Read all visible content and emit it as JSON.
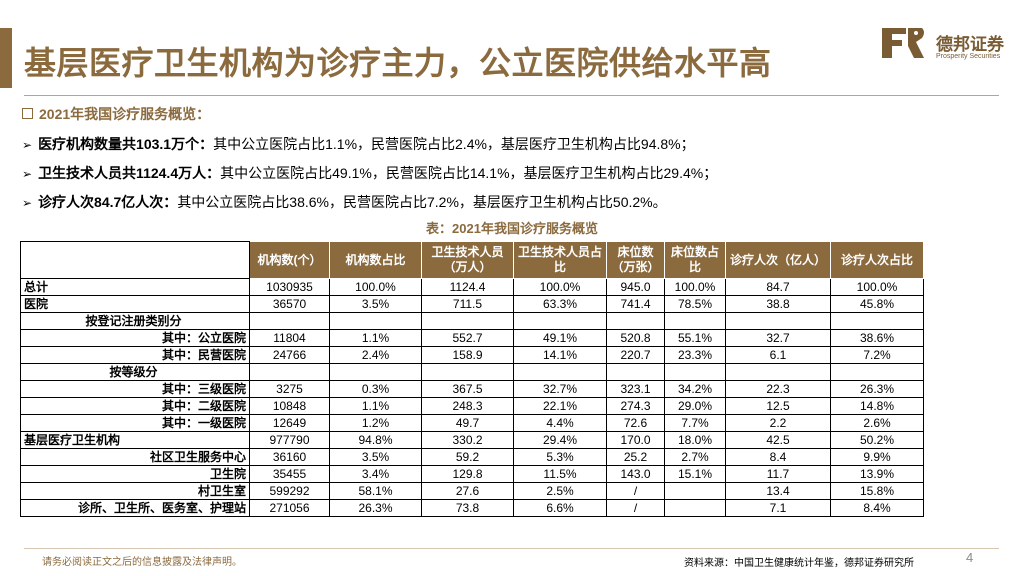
{
  "title": "基层医疗卫生机构为诊疗主力，公立医院供给水平高",
  "logo": {
    "cn": "德邦证券",
    "en": "Prosperity Securities"
  },
  "section_heading": "2021年我国诊疗服务概览：",
  "bullets": [
    {
      "bold": "医疗机构数量共103.1万个：",
      "text": "其中公立医院占比1.1%，民营医院占比2.4%，基层医疗卫生机构占比94.8%；"
    },
    {
      "bold": "卫生技术人员共1124.4万人：",
      "text": "其中公立医院占比49.1%，民营医院占比14.1%，基层医疗卫生机构占比29.4%；"
    },
    {
      "bold": "诊疗人次84.7亿人次：",
      "text": "其中公立医院占比38.6%，民营医院占比7.2%，基层医疗卫生机构占比50.2%。"
    }
  ],
  "table": {
    "caption": "表：2021年我国诊疗服务概览",
    "headers": [
      "机构数(个）",
      "机构数占比",
      "卫生技术人员（万人）",
      "卫生技术人员占比",
      "床位数（万张）",
      "床位数占比",
      "诊疗人次（亿人）",
      "诊疗人次占比"
    ],
    "rows": [
      {
        "label": "总计",
        "cells": [
          "1030935",
          "100.0%",
          "1124.4",
          "100.0%",
          "945.0",
          "100.0%",
          "84.7",
          "100.0%"
        ]
      },
      {
        "label": "医院",
        "cells": [
          "36570",
          "3.5%",
          "711.5",
          "63.3%",
          "741.4",
          "78.5%",
          "38.8",
          "45.8%"
        ]
      },
      {
        "label": "按登记注册类别分",
        "cells": [
          "",
          "",
          "",
          "",
          "",
          "",
          "",
          ""
        ]
      },
      {
        "label": "其中：公立医院",
        "cells": [
          "11804",
          "1.1%",
          "552.7",
          "49.1%",
          "520.8",
          "55.1%",
          "32.7",
          "38.6%"
        ]
      },
      {
        "label": "其中：民营医院",
        "cells": [
          "24766",
          "2.4%",
          "158.9",
          "14.1%",
          "220.7",
          "23.3%",
          "6.1",
          "7.2%"
        ]
      },
      {
        "label": "按等级分",
        "cells": [
          "",
          "",
          "",
          "",
          "",
          "",
          "",
          ""
        ]
      },
      {
        "label": "其中：三级医院",
        "cells": [
          "3275",
          "0.3%",
          "367.5",
          "32.7%",
          "323.1",
          "34.2%",
          "22.3",
          "26.3%"
        ]
      },
      {
        "label": "其中：二级医院",
        "cells": [
          "10848",
          "1.1%",
          "248.3",
          "22.1%",
          "274.3",
          "29.0%",
          "12.5",
          "14.8%"
        ]
      },
      {
        "label": "其中：一级医院",
        "cells": [
          "12649",
          "1.2%",
          "49.7",
          "4.4%",
          "72.6",
          "7.7%",
          "2.2",
          "2.6%"
        ]
      },
      {
        "label": "基层医疗卫生机构",
        "cells": [
          "977790",
          "94.8%",
          "330.2",
          "29.4%",
          "170.0",
          "18.0%",
          "42.5",
          "50.2%"
        ]
      },
      {
        "label": "社区卫生服务中心",
        "cells": [
          "36160",
          "3.5%",
          "59.2",
          "5.3%",
          "25.2",
          "2.7%",
          "8.4",
          "9.9%"
        ]
      },
      {
        "label": "卫生院",
        "cells": [
          "35455",
          "3.4%",
          "129.8",
          "11.5%",
          "143.0",
          "15.1%",
          "11.7",
          "13.9%"
        ]
      },
      {
        "label": "村卫生室",
        "cells": [
          "599292",
          "58.1%",
          "27.6",
          "2.5%",
          "/",
          "",
          "13.4",
          "15.8%"
        ]
      },
      {
        "label": "诊所、卫生所、医务室、护理站",
        "cells": [
          "271056",
          "26.3%",
          "73.8",
          "6.6%",
          "/",
          "",
          "7.1",
          "8.4%"
        ]
      }
    ]
  },
  "footer": {
    "disclaimer": "请务必阅读正文之后的信息披露及法律声明。",
    "source": "资料来源：中国卫生健康统计年鉴，德邦证券研究所",
    "page": "4"
  }
}
